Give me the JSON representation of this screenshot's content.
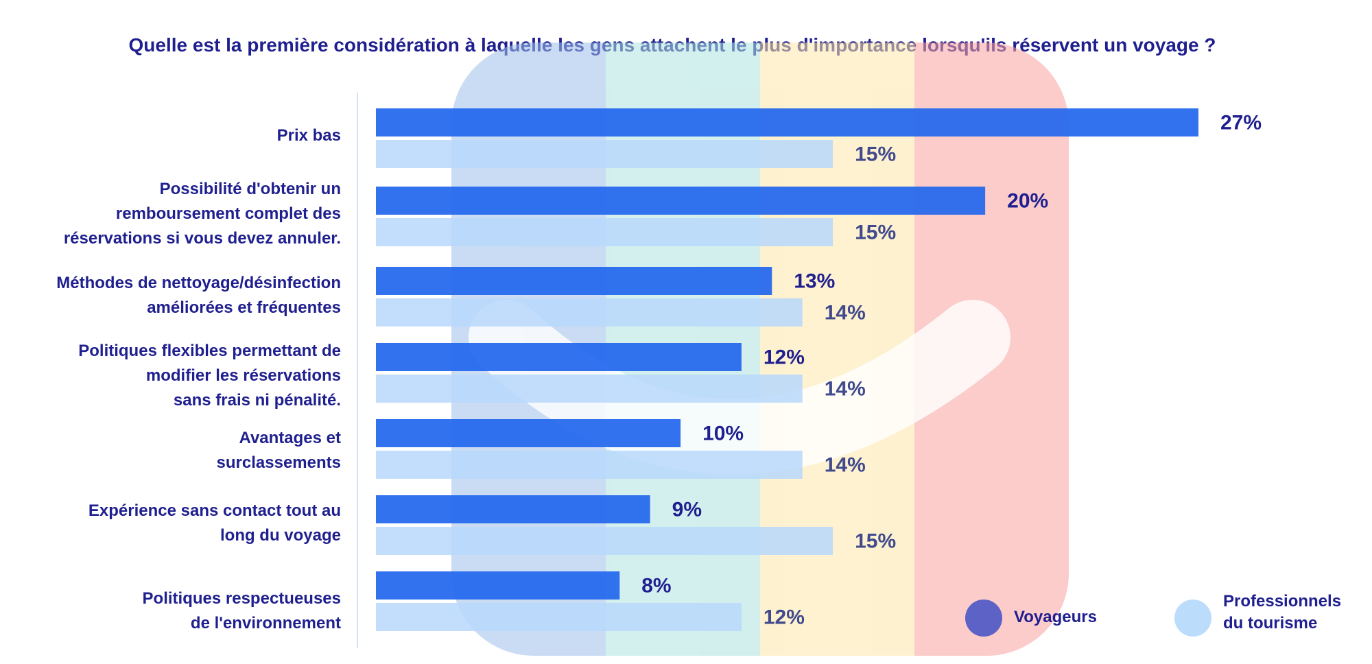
{
  "title": "Quelle est la première considération à laquelle les gens attachent le plus d'importance lorsqu'ils réservent un voyage ?",
  "colors": {
    "voyageurs": "#2266ee",
    "professionnels": "#b9d8fb",
    "title_text": "#1f1f8f",
    "value_text_dark": "#1f1f8f",
    "value_text_light": "#404a8c",
    "legend_voyageurs": "#5c62c6",
    "legend_professionnels": "#bcdcfc"
  },
  "legend": {
    "voyageurs_label": "Voyageurs",
    "professionnels_label_line1": "Professionnels",
    "professionnels_label_line2": "du tourisme"
  },
  "chart_data": {
    "type": "bar",
    "orientation": "horizontal",
    "title": "Quelle est la première considération à laquelle les gens attachent le plus d'importance lorsqu'ils réservent un voyage ?",
    "xlim": [
      0,
      30
    ],
    "grid": false,
    "legend_position": "bottom-right",
    "categories": [
      [
        "Prix bas"
      ],
      [
        "Possibilité d'obtenir un",
        "remboursement complet des",
        "réservations si vous devez annuler."
      ],
      [
        "Méthodes de nettoyage/désinfection",
        "améliorées et fréquentes"
      ],
      [
        "Politiques flexibles permettant de",
        "modifier les réservations",
        "sans frais ni pénalité."
      ],
      [
        "Avantages et",
        "surclassements"
      ],
      [
        "Expérience sans contact tout au",
        "long du voyage"
      ],
      [
        "Politiques respectueuses",
        "de l'environnement"
      ]
    ],
    "series": [
      {
        "name": "Voyageurs",
        "values": [
          27,
          20,
          13,
          12,
          10,
          9,
          8
        ],
        "labels": [
          "27%",
          "20%",
          "13%",
          "12%",
          "10%",
          "9%",
          "8%"
        ]
      },
      {
        "name": "Professionnels du tourisme",
        "values": [
          15,
          15,
          14,
          14,
          14,
          15,
          12
        ],
        "labels": [
          "15%",
          "15%",
          "14%",
          "14%",
          "14%",
          "15%",
          "12%"
        ]
      }
    ]
  }
}
